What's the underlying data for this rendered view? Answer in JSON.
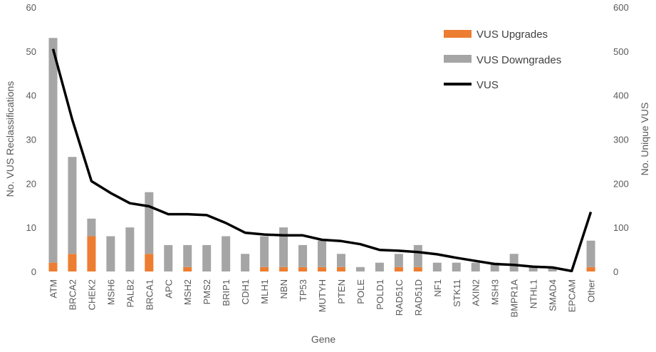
{
  "chart_data": {
    "type": "bar",
    "stacked": true,
    "xlabel": "Gene",
    "ylabel_left": "No. VUS Reclassifications",
    "ylabel_right": "No. Unique VUS",
    "ylim_left": [
      0,
      60
    ],
    "ylim_right": [
      0,
      600
    ],
    "yticks_left": [
      0,
      10,
      20,
      30,
      40,
      50,
      60
    ],
    "yticks_right": [
      0,
      100,
      200,
      300,
      400,
      500,
      600
    ],
    "grid": false,
    "legend_position": "top-right",
    "categories": [
      "ATM",
      "BRCA2",
      "CHEK2",
      "MSH6",
      "PALB2",
      "BRCA1",
      "APC",
      "MSH2",
      "PMS2",
      "BRIP1",
      "CDH1",
      "MLH1",
      "NBN",
      "TP53",
      "MUTYH",
      "PTEN",
      "POLE",
      "POLD1",
      "RAD51C",
      "RAD51D",
      "NF1",
      "STK11",
      "AXIN2",
      "MSH3",
      "BMPR1A",
      "NTHL1",
      "SMAD4",
      "EPCAM",
      "Other"
    ],
    "series": [
      {
        "name": "VUS Upgrades",
        "kind": "bar",
        "axis": "left",
        "color": "#ED7D31",
        "values": [
          2,
          4,
          8,
          0,
          0,
          4,
          0,
          1,
          0,
          0,
          0,
          1,
          1,
          1,
          1,
          1,
          0,
          0,
          1,
          1,
          0,
          0,
          0,
          0,
          0,
          0,
          0,
          0,
          1
        ]
      },
      {
        "name": "VUS Downgrades",
        "kind": "bar",
        "axis": "left",
        "color": "#A5A5A5",
        "values": [
          51,
          22,
          4,
          8,
          10,
          14,
          6,
          5,
          6,
          8,
          4,
          7,
          9,
          5,
          6,
          3,
          1,
          2,
          3,
          5,
          2,
          2,
          2,
          2,
          4,
          1,
          1,
          0,
          6
        ]
      },
      {
        "name": "VUS",
        "kind": "line",
        "axis": "right",
        "color": "#000000",
        "values": [
          505,
          345,
          205,
          178,
          155,
          148,
          130,
          130,
          128,
          110,
          88,
          84,
          82,
          82,
          72,
          69,
          62,
          49,
          47,
          44,
          39,
          31,
          24,
          17,
          15,
          11,
          9,
          1,
          135
        ]
      }
    ]
  }
}
